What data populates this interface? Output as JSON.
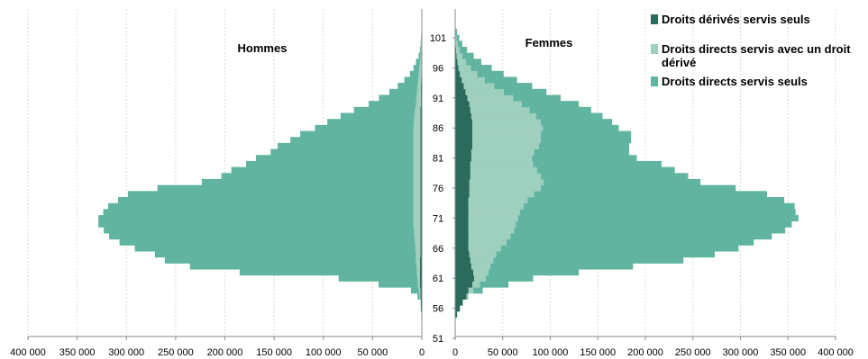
{
  "chart_data": {
    "type": "bar",
    "orientation": "horizontal",
    "panels": {
      "left": {
        "title": "Hommes"
      },
      "right": {
        "title": "Femmes"
      }
    },
    "x_ticks_left": [
      "400 000",
      "350 000",
      "300 000",
      "250 000",
      "200 000",
      "150 000",
      "100 000",
      "50 000",
      "0"
    ],
    "x_ticks_right": [
      "0",
      "50 000",
      "100 000",
      "150 000",
      "200 000",
      "250 000",
      "300 000",
      "350 000",
      "400 000"
    ],
    "xlim": [
      0,
      400000
    ],
    "age_ticks": [
      51,
      56,
      61,
      66,
      71,
      76,
      81,
      86,
      91,
      96,
      101
    ],
    "ages": [
      51,
      52,
      53,
      54,
      55,
      56,
      57,
      58,
      59,
      60,
      61,
      62,
      63,
      64,
      65,
      66,
      67,
      68,
      69,
      70,
      71,
      72,
      73,
      74,
      75,
      76,
      77,
      78,
      79,
      80,
      81,
      82,
      83,
      84,
      85,
      86,
      87,
      88,
      89,
      90,
      91,
      92,
      93,
      94,
      95,
      96,
      97,
      98,
      99,
      100,
      101,
      102,
      103,
      104,
      105
    ],
    "series": [
      {
        "name": "Droits dérivés servis seuls",
        "color": "#2a6b5c",
        "hommes": [
          0,
          0,
          0,
          0,
          500,
          1000,
          1000,
          1500,
          1500,
          2000,
          2000,
          2000,
          2000,
          2000,
          1500,
          1500,
          1500,
          1500,
          1500,
          1500,
          1500,
          1500,
          1500,
          1500,
          1500,
          1500,
          1500,
          1500,
          1500,
          1500,
          1500,
          1500,
          1500,
          1500,
          1500,
          1500,
          1500,
          1500,
          1500,
          1000,
          1000,
          1000,
          1000,
          800,
          600,
          500,
          400,
          300,
          200,
          150,
          100,
          0,
          0,
          0,
          0
        ],
        "femmes": [
          0,
          0,
          0,
          0,
          2000,
          5000,
          8000,
          12000,
          14000,
          18000,
          20000,
          19000,
          17000,
          16000,
          15000,
          14000,
          14000,
          14000,
          14000,
          14000,
          14000,
          14000,
          14000,
          14000,
          15000,
          15000,
          15000,
          16000,
          16000,
          16000,
          17000,
          17000,
          18000,
          18000,
          18000,
          18000,
          18000,
          17000,
          16000,
          15000,
          13000,
          11000,
          9000,
          7000,
          5000,
          3500,
          2500,
          1500,
          1000,
          500,
          300,
          0,
          0,
          0,
          0
        ]
      },
      {
        "name": "Droits directs servis avec un droit dérivé",
        "color": "#9fcfbe",
        "hommes": [
          0,
          0,
          0,
          0,
          0,
          0,
          500,
          1000,
          1500,
          2000,
          2500,
          3000,
          3500,
          4000,
          4500,
          5000,
          5500,
          6000,
          6500,
          7000,
          7000,
          7000,
          7000,
          7000,
          7000,
          7000,
          7000,
          7000,
          7000,
          7000,
          7000,
          7000,
          7000,
          7000,
          7000,
          7000,
          6500,
          6000,
          5500,
          5000,
          4500,
          4000,
          3500,
          3000,
          2500,
          2000,
          1500,
          1000,
          800,
          600,
          400,
          200,
          0,
          0,
          0
        ],
        "femmes": [
          0,
          0,
          0,
          0,
          0,
          0,
          0,
          2000,
          5000,
          8000,
          12000,
          16000,
          20000,
          24000,
          28000,
          34000,
          40000,
          44000,
          48000,
          50000,
          52000,
          54000,
          58000,
          62000,
          68000,
          75000,
          78000,
          74000,
          70000,
          66000,
          64000,
          66000,
          70000,
          72000,
          72000,
          74000,
          72000,
          68000,
          62000,
          55000,
          48000,
          40000,
          32000,
          24000,
          18000,
          13000,
          9000,
          6000,
          3500,
          2000,
          1000,
          500,
          0,
          0,
          0
        ]
      },
      {
        "name": "Droits directs servis seuls",
        "color": "#61b5a0",
        "hommes": [
          0,
          0,
          0,
          0,
          0,
          0,
          0,
          2000,
          8000,
          40000,
          80000,
          180000,
          230000,
          255000,
          265000,
          285000,
          300000,
          310000,
          315000,
          320000,
          320000,
          315000,
          310000,
          300000,
          290000,
          260000,
          215000,
          195000,
          185000,
          170000,
          160000,
          145000,
          138000,
          125000,
          115000,
          100000,
          88000,
          75000,
          62000,
          48000,
          38000,
          28000,
          20000,
          14000,
          9000,
          6000,
          4000,
          2000,
          1000,
          500,
          300,
          0,
          0,
          0,
          0
        ],
        "femmes": [
          0,
          0,
          0,
          0,
          0,
          0,
          0,
          0,
          10000,
          30000,
          50000,
          95000,
          150000,
          200000,
          230000,
          250000,
          260000,
          275000,
          285000,
          290000,
          295000,
          290000,
          285000,
          270000,
          245000,
          205000,
          165000,
          155000,
          145000,
          135000,
          110000,
          100000,
          95000,
          95000,
          95000,
          80000,
          75000,
          70000,
          65000,
          60000,
          50000,
          45000,
          40000,
          34000,
          28000,
          22000,
          16000,
          12000,
          8000,
          5000,
          3000,
          1500,
          0,
          0,
          0
        ]
      }
    ],
    "legend_position": "top-right",
    "grid": true
  }
}
